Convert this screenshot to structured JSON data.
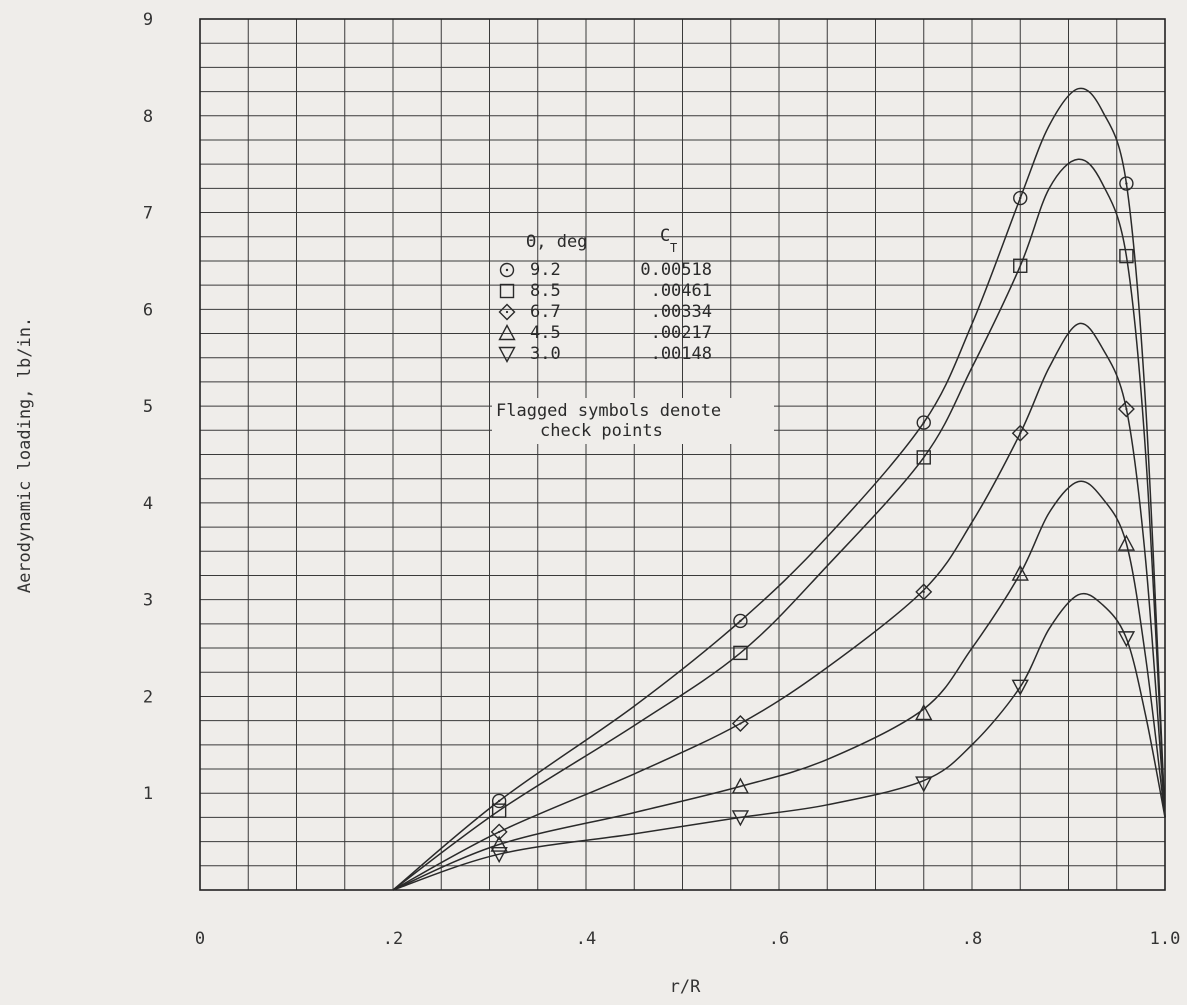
{
  "chart_data": {
    "type": "line",
    "title": "",
    "xlabel": "r/R",
    "ylabel": "Aerodynamic loading, lb/in.",
    "xlim": [
      0,
      1.0
    ],
    "ylim": [
      0,
      9
    ],
    "x_tick_labels": [
      "0",
      ".2",
      ".4",
      ".6",
      ".8",
      "1.0"
    ],
    "y_tick_labels": [
      "1",
      "2",
      "3",
      "4",
      "5",
      "6",
      "7",
      "8",
      "9"
    ],
    "grid": true,
    "legend": {
      "placement": "upper-middle",
      "header_theta": "Θ, deg",
      "header_ct": "C",
      "header_ct_sub": "T",
      "note_line1": "Flagged symbols denote",
      "note_line2": "check points"
    },
    "series": [
      {
        "theta": "9.2",
        "ct": "0.00518",
        "marker": "circle",
        "points": [
          [
            0.31,
            0.92
          ],
          [
            0.56,
            2.78
          ],
          [
            0.75,
            4.83
          ],
          [
            0.85,
            7.15
          ],
          [
            0.96,
            7.3
          ]
        ],
        "curve": [
          [
            0.2,
            0.0
          ],
          [
            0.31,
            0.92
          ],
          [
            0.45,
            1.9
          ],
          [
            0.56,
            2.78
          ],
          [
            0.65,
            3.65
          ],
          [
            0.75,
            4.83
          ],
          [
            0.8,
            5.85
          ],
          [
            0.85,
            7.15
          ],
          [
            0.88,
            7.9
          ],
          [
            0.91,
            8.28
          ],
          [
            0.935,
            8.05
          ],
          [
            0.96,
            7.3
          ],
          [
            0.98,
            5.0
          ],
          [
            1.0,
            0.75
          ]
        ]
      },
      {
        "theta": "8.5",
        "ct": ".00461",
        "marker": "square",
        "points": [
          [
            0.31,
            0.82
          ],
          [
            0.56,
            2.45
          ],
          [
            0.75,
            4.47
          ],
          [
            0.85,
            6.45
          ],
          [
            0.96,
            6.55
          ]
        ],
        "curve": [
          [
            0.2,
            0.0
          ],
          [
            0.31,
            0.82
          ],
          [
            0.45,
            1.7
          ],
          [
            0.56,
            2.45
          ],
          [
            0.65,
            3.35
          ],
          [
            0.75,
            4.47
          ],
          [
            0.8,
            5.4
          ],
          [
            0.85,
            6.45
          ],
          [
            0.88,
            7.25
          ],
          [
            0.91,
            7.55
          ],
          [
            0.935,
            7.3
          ],
          [
            0.96,
            6.55
          ],
          [
            0.98,
            4.5
          ],
          [
            1.0,
            0.75
          ]
        ]
      },
      {
        "theta": "6.7",
        "ct": ".00334",
        "marker": "diamond",
        "points": [
          [
            0.31,
            0.6
          ],
          [
            0.56,
            1.72
          ],
          [
            0.75,
            3.08
          ],
          [
            0.85,
            4.72
          ],
          [
            0.96,
            4.97
          ]
        ],
        "curve": [
          [
            0.2,
            0.0
          ],
          [
            0.31,
            0.6
          ],
          [
            0.45,
            1.2
          ],
          [
            0.56,
            1.72
          ],
          [
            0.65,
            2.3
          ],
          [
            0.75,
            3.1
          ],
          [
            0.8,
            3.8
          ],
          [
            0.85,
            4.72
          ],
          [
            0.88,
            5.4
          ],
          [
            0.91,
            5.85
          ],
          [
            0.935,
            5.6
          ],
          [
            0.96,
            4.97
          ],
          [
            0.98,
            3.4
          ],
          [
            1.0,
            0.75
          ]
        ]
      },
      {
        "theta": "4.5",
        "ct": ".00217",
        "marker": "triangle-up",
        "points": [
          [
            0.31,
            0.47
          ],
          [
            0.56,
            1.07
          ],
          [
            0.75,
            1.83
          ],
          [
            0.85,
            3.27
          ],
          [
            0.96,
            3.58
          ]
        ],
        "curve": [
          [
            0.2,
            0.0
          ],
          [
            0.31,
            0.47
          ],
          [
            0.45,
            0.8
          ],
          [
            0.56,
            1.07
          ],
          [
            0.65,
            1.35
          ],
          [
            0.75,
            1.87
          ],
          [
            0.8,
            2.5
          ],
          [
            0.85,
            3.27
          ],
          [
            0.88,
            3.9
          ],
          [
            0.91,
            4.22
          ],
          [
            0.935,
            4.05
          ],
          [
            0.96,
            3.58
          ],
          [
            0.98,
            2.4
          ],
          [
            1.0,
            0.75
          ]
        ]
      },
      {
        "theta": "3.0",
        "ct": ".00148",
        "marker": "triangle-down",
        "points": [
          [
            0.31,
            0.37
          ],
          [
            0.56,
            0.75
          ],
          [
            0.75,
            1.1
          ],
          [
            0.85,
            2.1
          ],
          [
            0.96,
            2.6
          ]
        ],
        "curve": [
          [
            0.2,
            0.0
          ],
          [
            0.31,
            0.37
          ],
          [
            0.45,
            0.58
          ],
          [
            0.56,
            0.75
          ],
          [
            0.65,
            0.88
          ],
          [
            0.75,
            1.13
          ],
          [
            0.8,
            1.5
          ],
          [
            0.85,
            2.1
          ],
          [
            0.88,
            2.7
          ],
          [
            0.91,
            3.05
          ],
          [
            0.935,
            2.95
          ],
          [
            0.96,
            2.6
          ],
          [
            0.98,
            1.8
          ],
          [
            1.0,
            0.75
          ]
        ]
      }
    ]
  }
}
